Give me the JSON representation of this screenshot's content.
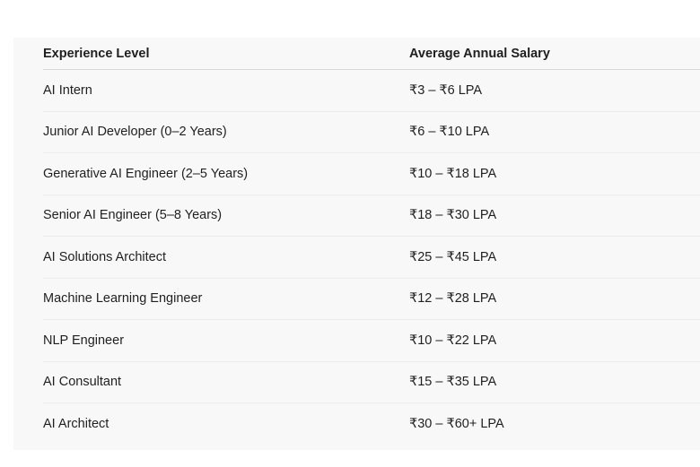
{
  "table": {
    "headers": [
      "Experience Level",
      "Average Annual Salary"
    ],
    "rows": [
      [
        "AI Intern",
        "₹3 – ₹6 LPA"
      ],
      [
        "Junior AI Developer (0–2 Years)",
        "₹6 – ₹10 LPA"
      ],
      [
        "Generative AI Engineer (2–5 Years)",
        "₹10 – ₹18 LPA"
      ],
      [
        "Senior AI Engineer (5–8 Years)",
        "₹18 – ₹30 LPA"
      ],
      [
        "AI Solutions Architect",
        "₹25 – ₹45 LPA"
      ],
      [
        "Machine Learning Engineer",
        "₹12 – ₹28 LPA"
      ],
      [
        "NLP Engineer",
        "₹10 – ₹22 LPA"
      ],
      [
        "AI Consultant",
        "₹15 – ₹35 LPA"
      ],
      [
        "AI Architect",
        "₹30 – ₹60+ LPA"
      ]
    ]
  }
}
